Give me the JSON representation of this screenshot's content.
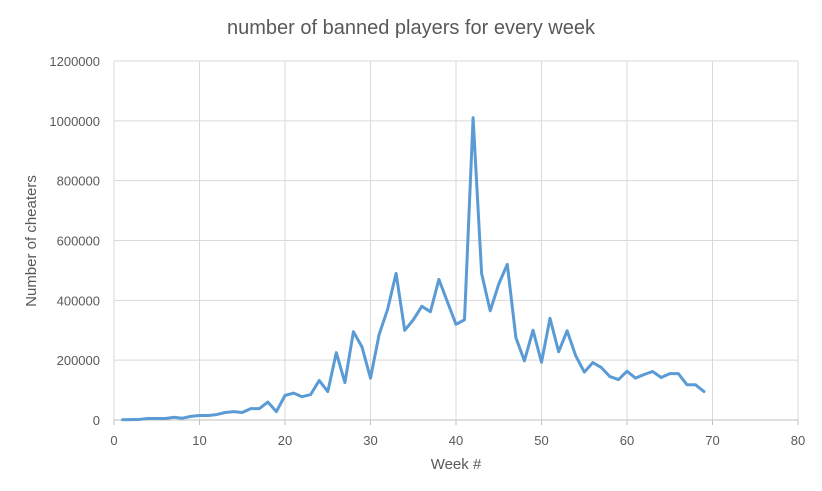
{
  "chart_data": {
    "type": "line",
    "title": "number of banned players for every week",
    "xlabel": "Week #",
    "ylabel": "Number of cheaters",
    "xlim": [
      0,
      80
    ],
    "ylim": [
      0,
      1200000
    ],
    "x_ticks": [
      "0",
      "10",
      "20",
      "30",
      "40",
      "50",
      "60",
      "70",
      "80"
    ],
    "y_ticks": [
      "0",
      "200000",
      "400000",
      "600000",
      "800000",
      "1000000",
      "1200000"
    ],
    "grid": true,
    "line_color": "#5B9BD5",
    "series": [
      {
        "name": "",
        "x": [
          1,
          2,
          3,
          4,
          5,
          6,
          7,
          8,
          9,
          10,
          11,
          12,
          13,
          14,
          15,
          16,
          17,
          18,
          19,
          20,
          21,
          22,
          23,
          24,
          25,
          26,
          27,
          28,
          29,
          30,
          31,
          32,
          33,
          34,
          35,
          36,
          37,
          38,
          39,
          40,
          41,
          42,
          43,
          44,
          45,
          46,
          47,
          48,
          49,
          50,
          51,
          52,
          53,
          54,
          55,
          56,
          57,
          58,
          59,
          60,
          61,
          62,
          63,
          64,
          65,
          66,
          67,
          68,
          69
        ],
        "y": [
          1000,
          1500,
          2000,
          5000,
          5000,
          5000,
          9000,
          6000,
          12000,
          15000,
          15000,
          18000,
          25000,
          28000,
          25000,
          38000,
          38000,
          60000,
          28000,
          82000,
          90000,
          78000,
          85000,
          132000,
          95000,
          225000,
          125000,
          295000,
          245000,
          140000,
          285000,
          370000,
          490000,
          300000,
          335000,
          380000,
          362000,
          470000,
          395000,
          320000,
          335000,
          1010000,
          490000,
          365000,
          455000,
          520000,
          275000,
          198000,
          300000,
          193000,
          340000,
          228000,
          298000,
          215000,
          160000,
          192000,
          175000,
          145000,
          135000,
          163000,
          140000,
          152000,
          162000,
          142000,
          155000,
          155000,
          118000,
          118000,
          95000
        ]
      }
    ]
  }
}
